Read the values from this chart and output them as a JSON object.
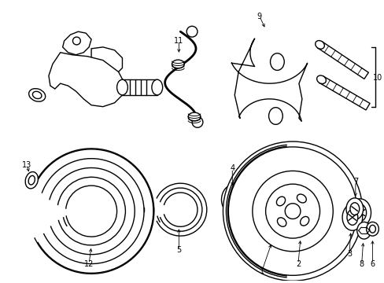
{
  "background_color": "#ffffff",
  "line_color": "#000000",
  "line_width": 1.0,
  "fig_width": 4.89,
  "fig_height": 3.6,
  "dpi": 100
}
